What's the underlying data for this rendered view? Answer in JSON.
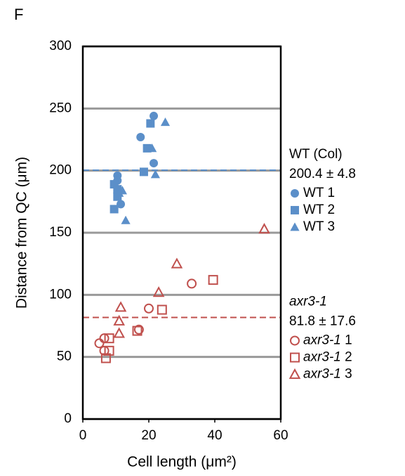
{
  "panel_label": "F",
  "chart_data": {
    "type": "scatter",
    "x_label": "Cell length (μm²)",
    "y_label": "Distance from QC (μm)",
    "xlim": [
      0,
      60
    ],
    "xticks": [
      0,
      20,
      40,
      60
    ],
    "ylim": [
      0,
      300
    ],
    "yticks": [
      0,
      50,
      100,
      150,
      200,
      250,
      300
    ],
    "grid": true,
    "series": [
      {
        "name": "WT 1",
        "color": "#5b8fc9",
        "marker": "circle",
        "filled": true,
        "x": [
          21.5,
          17.5,
          21.5,
          10.5,
          10.5,
          11.5
        ],
        "values": [
          244,
          227,
          206,
          196,
          192,
          173
        ]
      },
      {
        "name": "WT 2",
        "color": "#5b8fc9",
        "marker": "square",
        "filled": true,
        "x": [
          20.5,
          19.5,
          18.5,
          9.5,
          10.5,
          10.5,
          9.5
        ],
        "values": [
          238,
          218,
          199,
          189,
          179,
          185,
          169
        ]
      },
      {
        "name": "WT 3",
        "color": "#5b8fc9",
        "marker": "triangle",
        "filled": true,
        "x": [
          25,
          21,
          22,
          12,
          11,
          13
        ],
        "values": [
          239,
          218,
          197,
          184,
          182,
          160
        ]
      },
      {
        "name": "axr3-1 1",
        "color": "#c0504d",
        "marker": "circle",
        "filled": false,
        "x": [
          5,
          6.5,
          6.5,
          17,
          20,
          33
        ],
        "values": [
          61,
          65,
          55,
          72,
          89,
          109
        ]
      },
      {
        "name": "axr3-1 2",
        "color": "#c0504d",
        "marker": "square",
        "filled": false,
        "x": [
          7,
          8,
          8,
          16.5,
          24,
          39.5
        ],
        "values": [
          49,
          65,
          55,
          71,
          88,
          112
        ]
      },
      {
        "name": "axr3-1 3",
        "color": "#c0504d",
        "marker": "triangle",
        "filled": false,
        "x": [
          55,
          28.5,
          23,
          11.5,
          11,
          11
        ],
        "values": [
          153,
          125,
          102,
          90,
          79,
          69
        ]
      }
    ],
    "reference_lines": [
      {
        "label": "WT (Col)",
        "stat": "200.4 ± 4.8",
        "value": 200.4,
        "color": "#5b8fc9",
        "italic": false
      },
      {
        "label": "axr3-1",
        "stat": "81.8 ± 17.6",
        "value": 81.8,
        "color": "#c0504d",
        "italic": true
      }
    ]
  }
}
